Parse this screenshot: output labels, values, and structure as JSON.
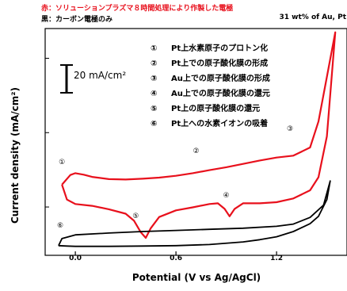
{
  "header": {
    "red_note": "赤：ソリューションプラズマ８時間処理により作製した電極",
    "black_note": "黒：カーボン電極のみ",
    "sample": "31 wt% of Au, Pt"
  },
  "legend": [
    {
      "num": "①",
      "text": "Pt上水素原子のプロトン化"
    },
    {
      "num": "②",
      "text": "Pt上での原子酸化膜の形成"
    },
    {
      "num": "③",
      "text": "Au上での原子酸化膜の形成"
    },
    {
      "num": "④",
      "text": "Au上での原子酸化膜の還元"
    },
    {
      "num": "⑤",
      "text": "Pt上の原子酸化膜の還元"
    },
    {
      "num": "⑥",
      "text": "Pt上への水素イオンの吸着"
    }
  ],
  "scale_bar": {
    "label": "20 mA/cm²",
    "value_mA_per_cm2": 20
  },
  "colors": {
    "red": "#e8101c",
    "black": "#000000"
  },
  "chart_data": {
    "type": "line",
    "title": "",
    "xlabel": "Potential (V vs Ag/AgCl)",
    "ylabel": "Current density (mA/cm²)",
    "xlim": [
      -0.18,
      1.62
    ],
    "x_ticks": [
      0.0,
      0.6,
      1.2
    ],
    "tick_labels": [
      "0.0",
      "0.6",
      "1.2"
    ],
    "ylim": [
      -3,
      58
    ],
    "grid": false,
    "series": [
      {
        "color": "#e8101c",
        "forward": {
          "x": [
            -0.08,
            -0.03,
            0.0,
            0.05,
            0.1,
            0.2,
            0.3,
            0.4,
            0.5,
            0.6,
            0.7,
            0.8,
            0.9,
            1.0,
            1.1,
            1.2,
            1.3,
            1.4,
            1.45,
            1.5,
            1.55
          ],
          "y": [
            16,
            18.6,
            19.1,
            18.7,
            18.1,
            17.5,
            17.4,
            17.6,
            17.9,
            18.4,
            19.1,
            19.9,
            20.7,
            21.6,
            22.5,
            23.3,
            23.8,
            26,
            33,
            45,
            57
          ]
        },
        "reverse": {
          "x": [
            1.55,
            1.5,
            1.45,
            1.4,
            1.3,
            1.2,
            1.1,
            1.0,
            0.95,
            0.92,
            0.89,
            0.85,
            0.8,
            0.7,
            0.6,
            0.5,
            0.45,
            0.42,
            0.39,
            0.35,
            0.3,
            0.2,
            0.1,
            0.0,
            -0.05,
            -0.08
          ],
          "y": [
            57,
            29,
            18,
            14.5,
            12.3,
            11.3,
            11,
            11,
            9.5,
            7.5,
            9.5,
            11,
            10.8,
            9.9,
            9.1,
            7.3,
            4.3,
            1.7,
            3.2,
            6.3,
            8.2,
            9.4,
            10.3,
            10.8,
            12,
            16
          ]
        }
      },
      {
        "color": "#000000",
        "forward": {
          "x": [
            -0.1,
            -0.05,
            0.0,
            0.2,
            0.4,
            0.6,
            0.8,
            1.0,
            1.1,
            1.2,
            1.3,
            1.4,
            1.45,
            1.5,
            1.52
          ],
          "y": [
            -0.4,
            -0.5,
            -0.6,
            -0.6,
            -0.5,
            -0.4,
            -0.1,
            0.6,
            1.2,
            2.0,
            3.4,
            5.5,
            7.5,
            12,
            17
          ]
        },
        "reverse": {
          "x": [
            1.52,
            1.48,
            1.4,
            1.3,
            1.2,
            1.0,
            0.8,
            0.6,
            0.4,
            0.2,
            0.0,
            -0.08,
            -0.1
          ],
          "y": [
            17,
            10.5,
            7.2,
            5.4,
            4.8,
            4.3,
            4.0,
            3.7,
            3.4,
            3.0,
            2.5,
            1.5,
            -0.4
          ]
        }
      }
    ],
    "annotations": [
      {
        "label": "①",
        "x": -0.08,
        "y": 22
      },
      {
        "label": "②",
        "x": 0.72,
        "y": 25
      },
      {
        "label": "③",
        "x": 1.28,
        "y": 31
      },
      {
        "label": "④",
        "x": 0.9,
        "y": 13
      },
      {
        "label": "⑤",
        "x": 0.36,
        "y": 7.5
      },
      {
        "label": "⑥",
        "x": -0.09,
        "y": 4.8
      }
    ]
  }
}
